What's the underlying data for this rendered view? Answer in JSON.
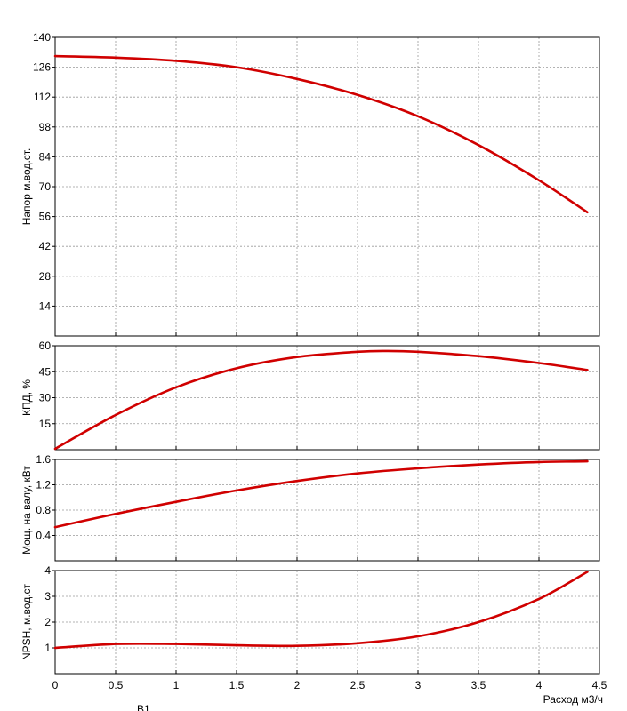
{
  "chart_data": {
    "type": "line",
    "line_color": "#d00000",
    "grid": true,
    "x": {
      "label": "Расход м3/ч",
      "ticks": [
        0,
        0.5,
        1,
        1.5,
        2,
        2.5,
        3,
        3.5,
        4,
        4.5
      ],
      "tick_labels": [
        "0",
        "0.5",
        "1",
        "1.5",
        "2",
        "2.5",
        "3",
        "3.5",
        "4",
        "4.5"
      ],
      "lim": [
        0,
        4.5
      ]
    },
    "panels": [
      {
        "id": "head",
        "ylabel": "Напор м.вод.ст.",
        "ylim": [
          0,
          140
        ],
        "yticks": [
          14,
          28,
          42,
          56,
          70,
          84,
          98,
          112,
          126,
          140
        ],
        "ytick_labels": [
          "14",
          "28",
          "42",
          "56",
          "70",
          "84",
          "98",
          "112",
          "126",
          "140"
        ],
        "points": [
          [
            0,
            131.2
          ],
          [
            0.5,
            130.5
          ],
          [
            1,
            129
          ],
          [
            1.5,
            126
          ],
          [
            2,
            120.5
          ],
          [
            2.5,
            113
          ],
          [
            3,
            103
          ],
          [
            3.5,
            89.5
          ],
          [
            4,
            73
          ],
          [
            4.4,
            58
          ]
        ]
      },
      {
        "id": "efficiency",
        "ylabel": "КПД, %",
        "ylim": [
          0,
          60
        ],
        "yticks": [
          15,
          30,
          45,
          60
        ],
        "ytick_labels": [
          "15",
          "30",
          "45",
          "60"
        ],
        "points": [
          [
            0,
            0.5
          ],
          [
            0.5,
            20
          ],
          [
            1,
            36
          ],
          [
            1.5,
            47
          ],
          [
            2,
            53.5
          ],
          [
            2.5,
            56.5
          ],
          [
            2.75,
            57
          ],
          [
            3,
            56.5
          ],
          [
            3.5,
            54
          ],
          [
            4,
            50
          ],
          [
            4.4,
            46
          ]
        ]
      },
      {
        "id": "power",
        "ylabel": "Мощ. на валу, кВт",
        "ylim": [
          0,
          1.6
        ],
        "yticks": [
          0.4,
          0.8,
          1.2,
          1.6
        ],
        "ytick_labels": [
          "0.4",
          "0.8",
          "1.2",
          "1.6"
        ],
        "points": [
          [
            0,
            0.53
          ],
          [
            0.5,
            0.74
          ],
          [
            1,
            0.93
          ],
          [
            1.5,
            1.11
          ],
          [
            2,
            1.26
          ],
          [
            2.5,
            1.38
          ],
          [
            3,
            1.46
          ],
          [
            3.5,
            1.52
          ],
          [
            4,
            1.56
          ],
          [
            4.4,
            1.57
          ]
        ]
      },
      {
        "id": "npsh",
        "ylabel": "NPSH, м.вод.ст",
        "ylim": [
          0,
          4
        ],
        "yticks": [
          1,
          2,
          3,
          4
        ],
        "ytick_labels": [
          "1",
          "2",
          "3",
          "4"
        ],
        "points": [
          [
            0,
            1.0
          ],
          [
            0.5,
            1.15
          ],
          [
            1,
            1.15
          ],
          [
            1.5,
            1.1
          ],
          [
            2,
            1.08
          ],
          [
            2.5,
            1.18
          ],
          [
            3,
            1.45
          ],
          [
            3.5,
            2.0
          ],
          [
            4,
            2.9
          ],
          [
            4.4,
            3.95
          ]
        ]
      }
    ],
    "annotations": [
      "В1"
    ]
  }
}
